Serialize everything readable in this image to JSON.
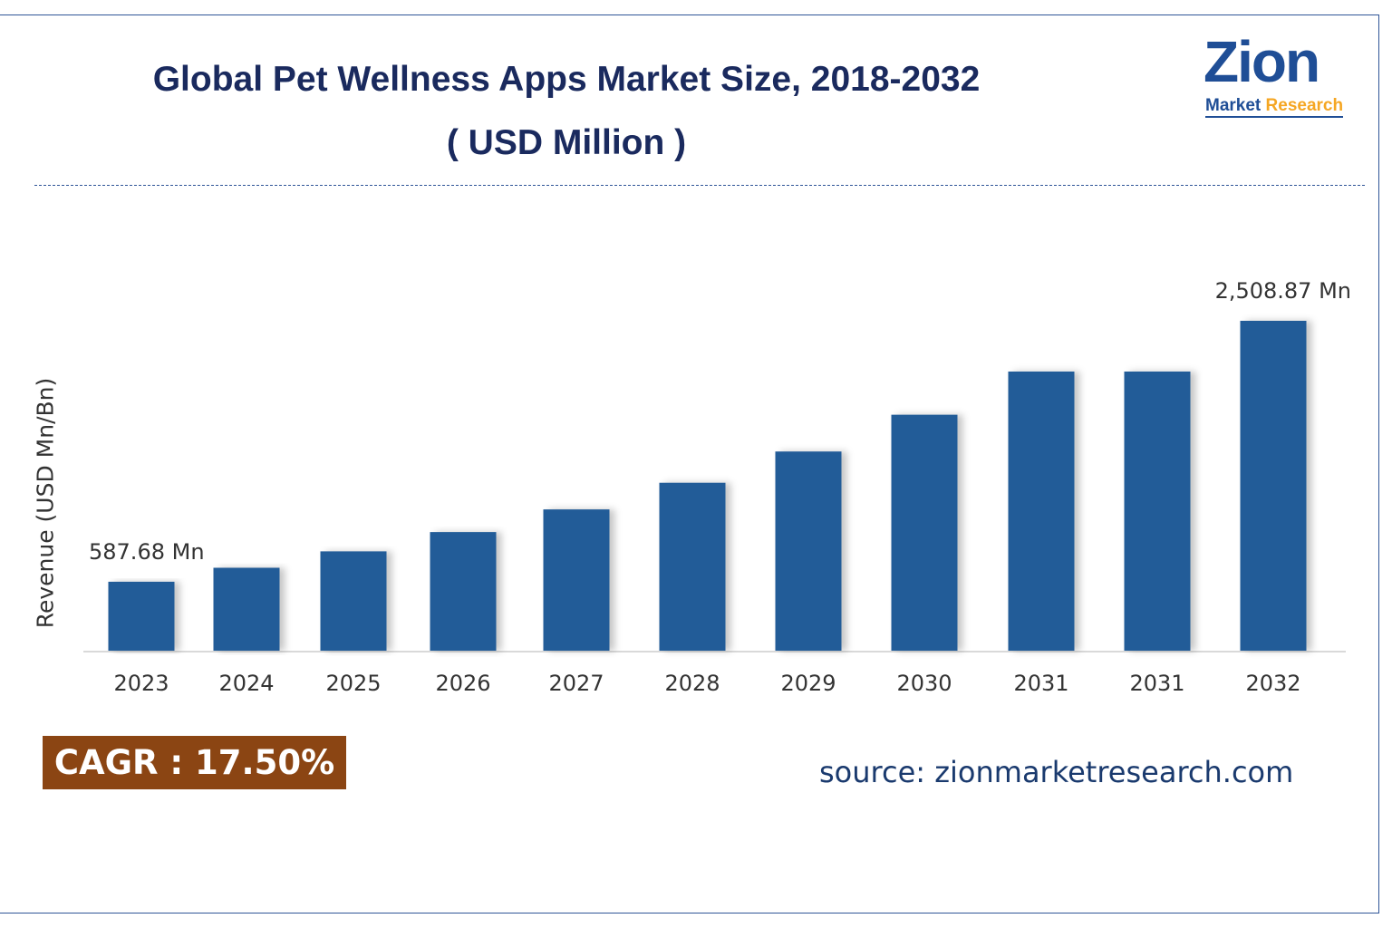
{
  "title": "Global Pet Wellness Apps Market Size, 2018-2032",
  "subtitle": "( USD Million )",
  "logo": {
    "brand": "Zion",
    "sub_left": "Market",
    "sub_right": "Research"
  },
  "cagr": "CAGR : 17.50%",
  "source": "source: zionmarketresearch.com",
  "colors": {
    "bar": "#245b98",
    "title": "#1a2a5e",
    "cagr_bg": "#8b4513",
    "accent": "#f5a623"
  },
  "chart_data": {
    "type": "bar",
    "title": "Global Pet Wellness Apps Market Size, 2018-2032",
    "ylabel": "Revenue (USD Mn/Bn)",
    "xlabel": "",
    "categories": [
      "2023",
      "2024",
      "2025",
      "2026",
      "2027",
      "2028",
      "2029",
      "2030",
      "2031",
      "2031",
      "2032"
    ],
    "values": [
      587.68,
      690.5,
      811.4,
      953.4,
      1120.2,
      1316.3,
      1546.6,
      1817.3,
      2135.3,
      2135.3,
      2508.87
    ],
    "data_labels": {
      "0": "587.68 Mn",
      "10": "2,508.87 Mn"
    },
    "grid": false,
    "legend": "none"
  }
}
